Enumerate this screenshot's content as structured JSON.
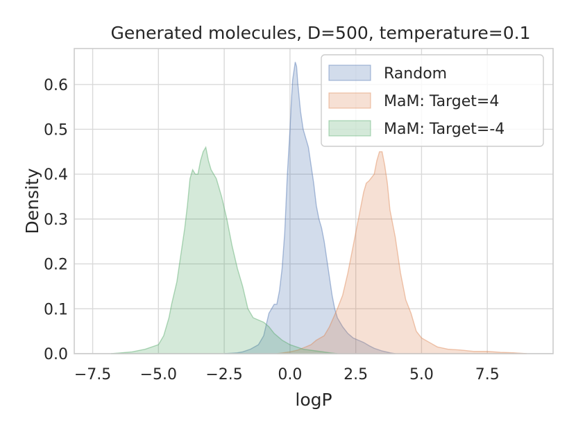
{
  "chart_data": {
    "type": "area",
    "title": "Generated molecules, D=500, temperature=0.1",
    "xlabel": "logP",
    "ylabel": "Density",
    "xlim": [
      -8.2,
      10.0
    ],
    "ylim": [
      0,
      0.68
    ],
    "x_ticks": [
      -7.5,
      -5.0,
      -2.5,
      0.0,
      2.5,
      5.0,
      7.5
    ],
    "x_tick_labels": [
      "−7.5",
      "−5.0",
      "−2.5",
      "0.0",
      "2.5",
      "5.0",
      "7.5"
    ],
    "y_ticks": [
      0.0,
      0.1,
      0.2,
      0.3,
      0.4,
      0.5,
      0.6
    ],
    "y_tick_labels": [
      "0.0",
      "0.1",
      "0.2",
      "0.3",
      "0.4",
      "0.5",
      "0.6"
    ],
    "grid": true,
    "legend_position": "top-right",
    "series": [
      {
        "name": "Random",
        "color": "#4c72b0",
        "x": [
          -2.5,
          -2.0,
          -1.8,
          -1.5,
          -1.2,
          -1.0,
          -0.8,
          -0.6,
          -0.5,
          -0.4,
          -0.3,
          -0.2,
          -0.1,
          0.0,
          0.05,
          0.1,
          0.2,
          0.25,
          0.3,
          0.4,
          0.5,
          0.6,
          0.7,
          0.8,
          0.9,
          1.0,
          1.1,
          1.2,
          1.3,
          1.4,
          1.5,
          1.6,
          1.7,
          1.8,
          2.0,
          2.2,
          2.4,
          2.6,
          2.8,
          3.0,
          3.2,
          3.5,
          3.8,
          4.0
        ],
        "y": [
          0.0,
          0.002,
          0.004,
          0.01,
          0.02,
          0.04,
          0.09,
          0.11,
          0.11,
          0.14,
          0.19,
          0.27,
          0.4,
          0.5,
          0.56,
          0.61,
          0.65,
          0.64,
          0.6,
          0.54,
          0.5,
          0.48,
          0.46,
          0.42,
          0.38,
          0.33,
          0.3,
          0.28,
          0.25,
          0.21,
          0.17,
          0.13,
          0.1,
          0.08,
          0.06,
          0.045,
          0.035,
          0.03,
          0.025,
          0.018,
          0.012,
          0.006,
          0.002,
          0.0
        ]
      },
      {
        "name": "MaM: Target=4",
        "color": "#dd8452",
        "x": [
          -0.5,
          0.0,
          0.3,
          0.6,
          0.8,
          1.0,
          1.3,
          1.5,
          1.8,
          2.0,
          2.2,
          2.4,
          2.5,
          2.6,
          2.8,
          2.9,
          3.0,
          3.2,
          3.3,
          3.4,
          3.5,
          3.6,
          3.7,
          3.8,
          4.0,
          4.2,
          4.4,
          4.6,
          4.8,
          5.0,
          5.3,
          5.6,
          6.0,
          6.5,
          7.0,
          7.5,
          8.0,
          8.5,
          9.0
        ],
        "y": [
          0.0,
          0.004,
          0.008,
          0.015,
          0.02,
          0.03,
          0.04,
          0.06,
          0.1,
          0.13,
          0.18,
          0.24,
          0.27,
          0.3,
          0.36,
          0.38,
          0.385,
          0.4,
          0.43,
          0.45,
          0.45,
          0.42,
          0.38,
          0.32,
          0.26,
          0.18,
          0.12,
          0.09,
          0.05,
          0.035,
          0.025,
          0.015,
          0.01,
          0.008,
          0.005,
          0.005,
          0.003,
          0.002,
          0.0
        ]
      },
      {
        "name": "MaM: Target=-4",
        "color": "#55a868",
        "x": [
          -6.8,
          -6.0,
          -5.5,
          -5.0,
          -4.8,
          -4.6,
          -4.5,
          -4.3,
          -4.2,
          -4.0,
          -3.9,
          -3.8,
          -3.7,
          -3.6,
          -3.5,
          -3.4,
          -3.3,
          -3.2,
          -3.1,
          -3.0,
          -2.9,
          -2.8,
          -2.6,
          -2.4,
          -2.2,
          -2.0,
          -1.8,
          -1.6,
          -1.4,
          -1.2,
          -1.0,
          -0.8,
          -0.6,
          -0.3,
          0.0,
          0.5,
          1.0,
          1.5,
          1.8
        ],
        "y": [
          0.0,
          0.004,
          0.01,
          0.02,
          0.04,
          0.08,
          0.11,
          0.16,
          0.2,
          0.28,
          0.33,
          0.39,
          0.41,
          0.4,
          0.4,
          0.43,
          0.45,
          0.46,
          0.43,
          0.41,
          0.4,
          0.39,
          0.35,
          0.3,
          0.24,
          0.19,
          0.15,
          0.1,
          0.08,
          0.075,
          0.07,
          0.06,
          0.045,
          0.03,
          0.02,
          0.01,
          0.006,
          0.002,
          0.0
        ]
      }
    ]
  }
}
